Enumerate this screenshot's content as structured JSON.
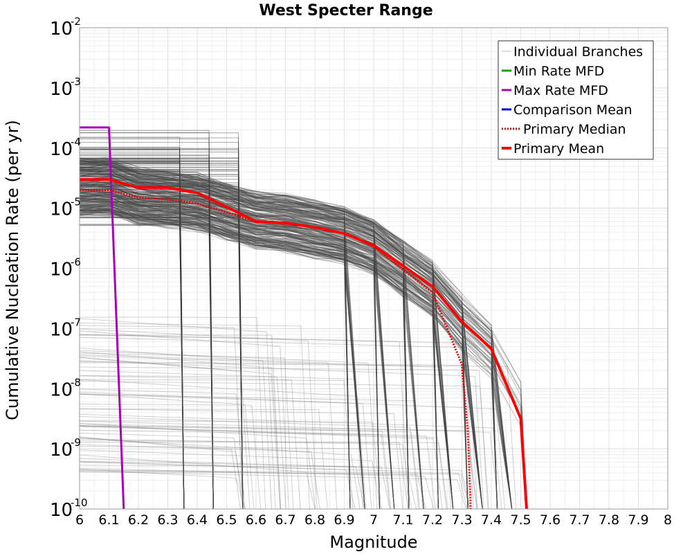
{
  "chart_data": {
    "type": "line",
    "title": "West Specter Range",
    "xlabel": "Magnitude",
    "ylabel": "Cumulative Nucleation Rate (per yr)",
    "xlim": [
      6.0,
      8.0
    ],
    "ylim": [
      1e-10,
      0.01
    ],
    "yscale": "log",
    "grid": true,
    "x_ticks": [
      "6",
      "6.1",
      "6.2",
      "6.3",
      "6.4",
      "6.5",
      "6.6",
      "6.7",
      "6.8",
      "6.9",
      "7",
      "7.1",
      "7.2",
      "7.3",
      "7.4",
      "7.5",
      "7.6",
      "7.7",
      "7.8",
      "7.9",
      "8"
    ],
    "y_ticks": [
      {
        "base": "10",
        "exp": "-2"
      },
      {
        "base": "10",
        "exp": "-3"
      },
      {
        "base": "10",
        "exp": "-4"
      },
      {
        "base": "10",
        "exp": "-5"
      },
      {
        "base": "10",
        "exp": "-6"
      },
      {
        "base": "10",
        "exp": "-7"
      },
      {
        "base": "10",
        "exp": "-8"
      },
      {
        "base": "10",
        "exp": "-9"
      },
      {
        "base": "10",
        "exp": "-10"
      }
    ],
    "legend_position": "top-right",
    "series": [
      {
        "name": "Individual Branches",
        "color": "#555555",
        "style": "thin-translucent",
        "count_shown": "many"
      },
      {
        "name": "Min Rate MFD",
        "color": "#00aa00",
        "style": "solid",
        "x": [],
        "y": []
      },
      {
        "name": "Max Rate MFD",
        "color": "#aa00bb",
        "style": "solid",
        "x": [
          6.0,
          6.1,
          6.15
        ],
        "y": [
          0.00022,
          0.00022,
          1e-10
        ]
      },
      {
        "name": "Comparison Mean",
        "color": "#0000dd",
        "style": "solid",
        "x": [],
        "y": []
      },
      {
        "name": "Primary Median",
        "color": "#ee0000",
        "style": "dotted",
        "x": [
          6.0,
          6.1,
          6.2,
          6.3,
          6.4,
          6.5,
          6.6,
          6.7,
          6.8,
          6.9,
          7.0,
          7.1,
          7.2,
          7.3,
          7.32,
          7.33
        ],
        "y": [
          2e-05,
          2e-05,
          1.5e-05,
          1.4e-05,
          1.2e-05,
          8.5e-06,
          6e-06,
          5.5e-06,
          4.8e-06,
          3.8e-06,
          2.3e-06,
          9.5e-07,
          4e-07,
          2.5e-08,
          2e-09,
          1e-10
        ]
      },
      {
        "name": "Primary Mean",
        "color": "#ff0000",
        "style": "thick",
        "x": [
          6.0,
          6.1,
          6.2,
          6.3,
          6.4,
          6.5,
          6.6,
          6.7,
          6.8,
          6.9,
          7.0,
          7.1,
          7.2,
          7.3,
          7.4,
          7.5,
          7.52
        ],
        "y": [
          3e-05,
          3e-05,
          2.2e-05,
          2.2e-05,
          1.8e-05,
          1.05e-05,
          6e-06,
          5.7e-06,
          4.8e-06,
          3.8e-06,
          2.4e-06,
          1.1e-06,
          5e-07,
          1.3e-07,
          4.6e-08,
          3.2e-09,
          1e-10
        ]
      }
    ]
  }
}
